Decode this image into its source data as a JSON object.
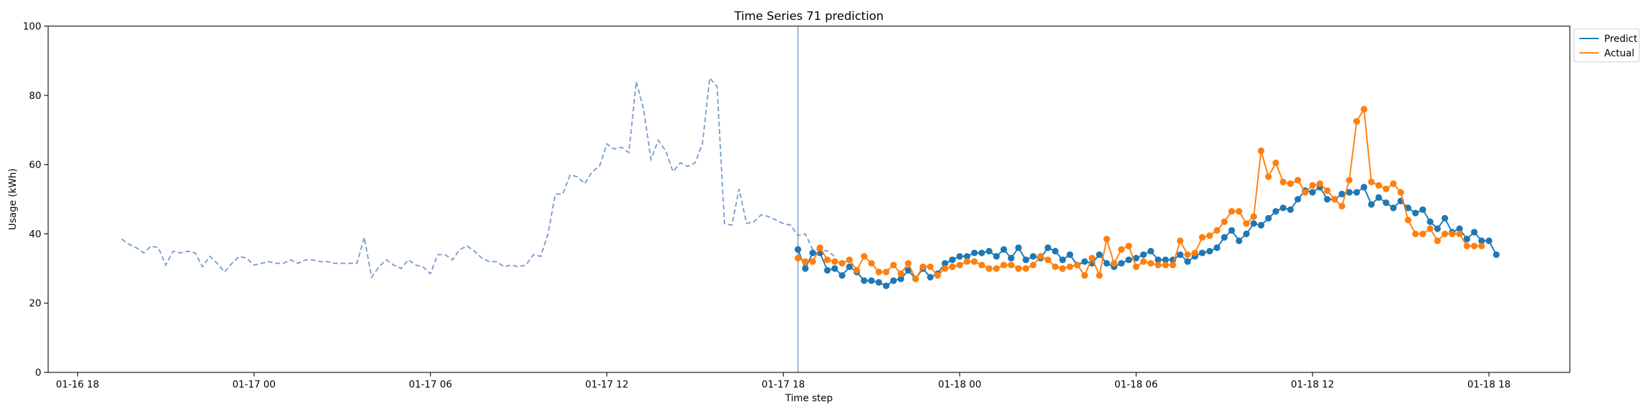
{
  "chart_data": {
    "type": "line",
    "title": "Time Series 71 prediction",
    "xlabel": "Time step",
    "ylabel": "Usage (kWh)",
    "ylim": [
      0,
      100
    ],
    "xlim": [
      "2024-01-16T17:00",
      "2024-01-18T20:45"
    ],
    "yticks": [
      0,
      20,
      40,
      60,
      80,
      100
    ],
    "xticks": [
      {
        "t": "2024-01-16T18:00",
        "label": "01-16 18"
      },
      {
        "t": "2024-01-17T00:00",
        "label": "01-17 00"
      },
      {
        "t": "2024-01-17T06:00",
        "label": "01-17 06"
      },
      {
        "t": "2024-01-17T12:00",
        "label": "01-17 12"
      },
      {
        "t": "2024-01-17T18:00",
        "label": "01-17 18"
      },
      {
        "t": "2024-01-18T00:00",
        "label": "01-18 00"
      },
      {
        "t": "2024-01-18T06:00",
        "label": "01-18 06"
      },
      {
        "t": "2024-01-18T12:00",
        "label": "01-18 12"
      },
      {
        "t": "2024-01-18T18:00",
        "label": "01-18 18"
      }
    ],
    "grid": false,
    "legend_position": "outside top-right",
    "colors": {
      "history": "#7f9fcf",
      "predict": "#1f77b4",
      "actual": "#ff7f0e",
      "divider": "#7f9fcf"
    },
    "forecast_start": "2024-01-17T18:30",
    "step_minutes": 15,
    "series": [
      {
        "style": "dashed",
        "start": "2024-01-16T19:30",
        "values": [
          38.5,
          37,
          36,
          34.5,
          36.5,
          36,
          31,
          35,
          34.5,
          35,
          34.5,
          30.5,
          33.5,
          31.5,
          29,
          31.5,
          33.5,
          33,
          31,
          31.5,
          32,
          31.5,
          31.5,
          32.5,
          31.5,
          32.5,
          32.5,
          32,
          32,
          31.5,
          31.5,
          31.5,
          31.5,
          39,
          27.5,
          30.5,
          32.5,
          31,
          30,
          32.5,
          31,
          30.5,
          28.5,
          34,
          34,
          32.5,
          35.5,
          36.5,
          35,
          33,
          32,
          32,
          30.5,
          31,
          30.5,
          31,
          34,
          33.5,
          40,
          51.5,
          51.5,
          57,
          56.5,
          54.5,
          58,
          59.5,
          66,
          64.5,
          65,
          63.5,
          84,
          76,
          61.5,
          67,
          64,
          58,
          60.5,
          59.5,
          60.5,
          66,
          85,
          82.5,
          43,
          42.5,
          53,
          43,
          43.5,
          45.5,
          45,
          44,
          43,
          42.5,
          39.5,
          40,
          35.5,
          35.5,
          35,
          33.5
        ]
      },
      {
        "name": "Predict",
        "style": "solid-markers",
        "start": "2024-01-17T18:30",
        "values": [
          35.5,
          30,
          34.5,
          34.5,
          29.5,
          30,
          28,
          30.5,
          29,
          26.5,
          26.5,
          26,
          25,
          26.5,
          27,
          29.5,
          27,
          30,
          27.5,
          28.5,
          31.5,
          32.5,
          33.5,
          33.5,
          34.5,
          34.5,
          35,
          33.5,
          35.5,
          33,
          36,
          32.5,
          33.5,
          33,
          36,
          35,
          32.5,
          34,
          31,
          32,
          31.5,
          34,
          31.5,
          30.5,
          31.5,
          32.5,
          33,
          34,
          35,
          32.5,
          32.5,
          32.5,
          34,
          32,
          33.5,
          34.5,
          35,
          36,
          39,
          41,
          38,
          40,
          43,
          42.5,
          44.5,
          46.5,
          47.5,
          47,
          50,
          52.5,
          52,
          53.5,
          50,
          50,
          51.5,
          52,
          52,
          53.5,
          48.5,
          50.5,
          49,
          47.5,
          49.5,
          47.5,
          46,
          47,
          43.5,
          41.5,
          44.5,
          40.5,
          41.5,
          38.5,
          40.5,
          38,
          38,
          34
        ]
      },
      {
        "name": "Actual",
        "style": "solid-markers",
        "start": "2024-01-17T18:30",
        "values": [
          33,
          32,
          32,
          36,
          32.5,
          32,
          31.5,
          32.5,
          29.5,
          33.5,
          31.5,
          29,
          29,
          31,
          28.5,
          31.5,
          27,
          30.5,
          30.5,
          28,
          30,
          30.5,
          31,
          32,
          32,
          31,
          30,
          30,
          31,
          31,
          30,
          30,
          31,
          33.5,
          32.5,
          30.5,
          30,
          30.5,
          31,
          28,
          33,
          28,
          38.5,
          31.5,
          35.5,
          36.5,
          30.5,
          32,
          31.5,
          31,
          31,
          31,
          38,
          34,
          34.5,
          39,
          39.5,
          41,
          43.5,
          46.5,
          46.5,
          43,
          45,
          64,
          56.5,
          60.5,
          55,
          54.5,
          55.5,
          52,
          54,
          54.5,
          52.5,
          50,
          48,
          55.5,
          72.5,
          76,
          55,
          54,
          53,
          54.5,
          52,
          44,
          40,
          40,
          41.5,
          38,
          40,
          40,
          40,
          36.5,
          36.5,
          36.5
        ]
      }
    ]
  }
}
